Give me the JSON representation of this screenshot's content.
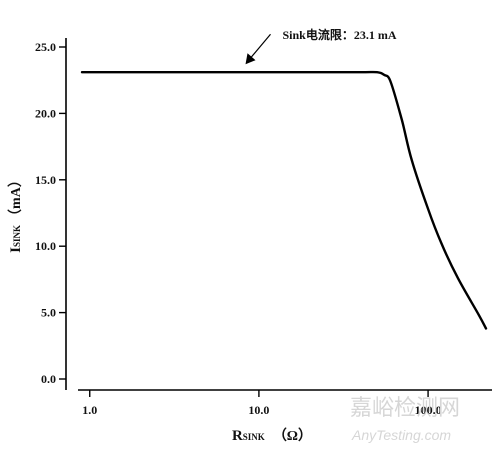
{
  "chart_data": {
    "type": "line",
    "x_scale": "log",
    "xlim": [
      0.9,
      220
    ],
    "ylim": [
      0,
      25
    ],
    "x_ticks": [
      {
        "value": 1,
        "label": "1.0"
      },
      {
        "value": 10,
        "label": "10.0"
      },
      {
        "value": 100,
        "label": "100.0"
      }
    ],
    "y_ticks": [
      {
        "value": 0,
        "label": "0.0"
      },
      {
        "value": 5,
        "label": "5.0"
      },
      {
        "value": 10,
        "label": "10.0"
      },
      {
        "value": 15,
        "label": "15.0"
      },
      {
        "value": 20,
        "label": "20.0"
      },
      {
        "value": 25,
        "label": "25.0"
      }
    ],
    "xlabel": {
      "main": "R",
      "sub": "SINK",
      "unit": "（Ω）"
    },
    "ylabel": {
      "main": "I",
      "sub": "SINK",
      "unit": "（mA）"
    },
    "series": [
      {
        "x": [
          0.9,
          2,
          5,
          10,
          20,
          40,
          50,
          55,
          60,
          70,
          80,
          100,
          120,
          150,
          200,
          220
        ],
        "y": [
          23.1,
          23.1,
          23.1,
          23.1,
          23.1,
          23.1,
          23.1,
          22.9,
          22.4,
          19.5,
          16.5,
          12.8,
          10.2,
          7.6,
          4.8,
          3.8
        ]
      }
    ],
    "annotation": {
      "text": "Sink电流限：23.1 mA",
      "x": 8,
      "y": 23.1
    },
    "grid": false,
    "line_color": "#000000"
  },
  "watermark": {
    "main": "嘉峪检测网",
    "sub": "AnyTesting.com"
  }
}
